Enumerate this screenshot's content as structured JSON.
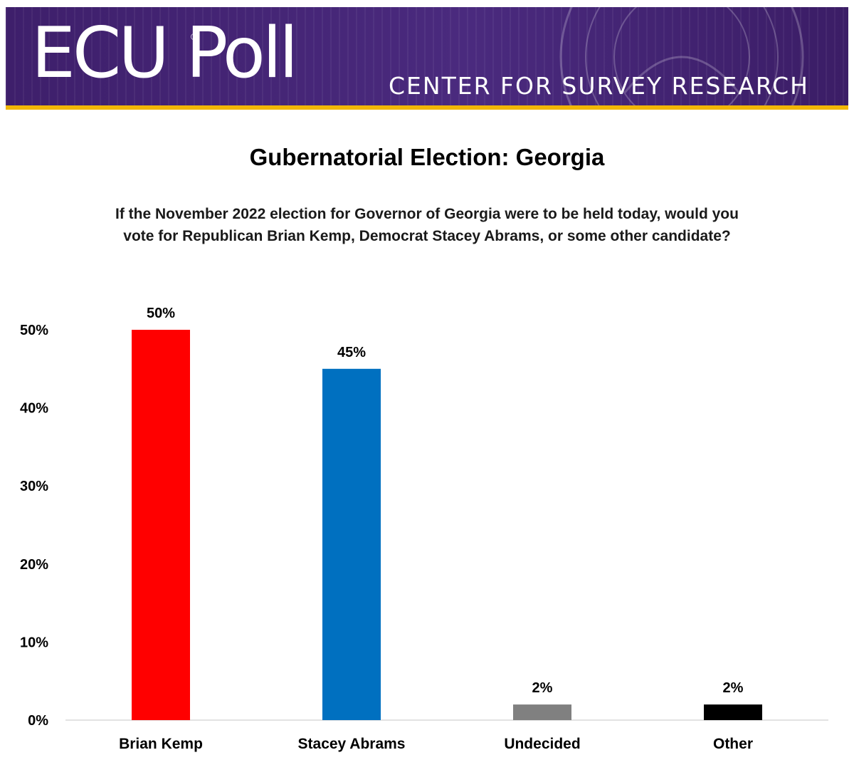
{
  "header": {
    "logo_text": "ECU Poll",
    "logo_mark": "®",
    "center_text": "CENTER FOR SURVEY RESEARCH",
    "brand_purple": "#3e1f6b",
    "brand_gold": "#f2b705",
    "seal_icon": "university-seal-icon"
  },
  "chart_data": {
    "type": "bar",
    "title": "Gubernatorial Election: Georgia",
    "subtitle": "If the November 2022 election for Governor of Georgia were to be held today, would you vote for Republican Brian Kemp, Democrat Stacey Abrams, or some other candidate?",
    "categories": [
      "Brian Kemp",
      "Stacey Abrams",
      "Undecided",
      "Other"
    ],
    "values": [
      50,
      45,
      2,
      2
    ],
    "data_labels": [
      "50%",
      "45%",
      "2%",
      "2%"
    ],
    "colors": [
      "#ff0000",
      "#0070c0",
      "#808080",
      "#000000"
    ],
    "y_ticks": [
      "0%",
      "10%",
      "20%",
      "30%",
      "40%",
      "50%"
    ],
    "y_tick_values": [
      0,
      10,
      20,
      30,
      40,
      50
    ],
    "ylim": [
      0,
      50
    ],
    "xlabel": "",
    "ylabel": "",
    "grid": false,
    "legend": "none"
  }
}
